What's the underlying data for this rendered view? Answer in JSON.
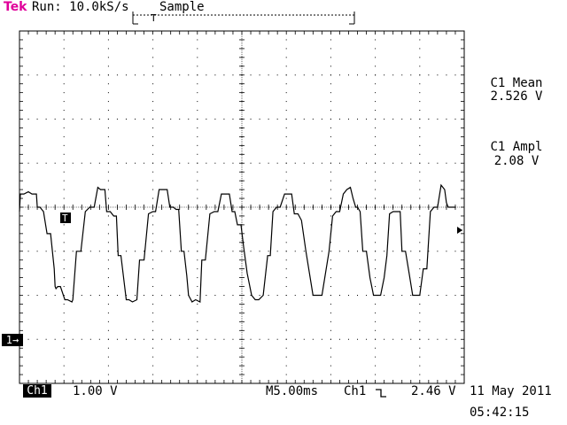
{
  "header": {
    "brand": "Tek",
    "run_status": "Run: 10.0kS/s",
    "acq_mode": "Sample"
  },
  "measurements": [
    {
      "label": "C1 Mean",
      "value": "2.526 V"
    },
    {
      "label": "C1 Ampl",
      "value": "2.08 V"
    }
  ],
  "channel_marker": "1→",
  "trigger_marker": "T",
  "footer": {
    "channel": "Ch1",
    "volts_per_div": "1.00 V",
    "timebase": "M5.00ms",
    "trigger_source": "Ch1",
    "trigger_slope_icon": "falling-edge-icon",
    "trigger_level": "2.46 V",
    "date": "11 May 2011",
    "time": "05:42:15"
  },
  "colors": {
    "brand": "#e0009a",
    "trace": "#000000",
    "grid": "#000000",
    "background": "#ffffff"
  },
  "chart_data": {
    "type": "line",
    "xlabel": "",
    "ylabel": "",
    "x_units": "ms",
    "y_units": "V",
    "xlim": [
      0,
      50
    ],
    "ylim": [
      -1.4,
      6.6
    ],
    "grid": true,
    "series": [
      {
        "x": [
          0,
          0.1,
          0.5,
          1.0,
          1.4,
          1.9,
          2.0,
          2.3,
          2.7,
          3.1,
          3.5,
          3.9,
          4.0,
          4.1,
          4.3,
          4.6,
          5.1,
          5.4,
          5.9,
          6.0,
          6.4,
          6.9,
          7.4,
          7.9,
          8.4,
          8.8,
          9.1,
          9.6,
          9.8,
          10.2,
          10.6,
          10.9,
          11.1,
          11.4,
          11.7,
          12.0,
          12.3,
          12.7,
          13.2,
          13.5,
          14.0,
          14.5,
          15.0,
          15.3,
          15.7,
          16.1,
          16.6,
          16.9,
          17.3,
          17.6,
          17.9,
          18.2,
          18.5,
          18.8,
          19.0,
          19.4,
          19.8,
          20.3,
          20.5,
          20.9,
          21.4,
          21.9,
          22.3,
          22.7,
          22.8,
          23.2,
          23.6,
          23.9,
          24.2,
          24.5,
          24.9,
          25.2,
          25.6,
          26.1,
          26.5,
          26.9,
          27.4,
          27.9,
          28.2,
          28.5,
          28.9,
          29.3,
          29.8,
          30.0,
          30.3,
          30.6,
          30.9,
          31.3,
          31.7,
          32.2,
          32.6,
          33.0,
          33.5,
          34.0,
          34.4,
          34.8,
          35.2,
          35.6,
          36.0,
          36.4,
          36.8,
          37.2,
          37.5,
          37.8,
          38.0,
          38.3,
          38.6,
          39.0,
          39.4,
          39.8,
          40.2,
          40.6,
          41.0,
          41.3,
          41.6,
          42.0,
          42.4,
          42.8,
          43.0,
          43.4,
          43.8,
          44.2,
          44.6,
          45.0,
          45.4,
          45.8,
          46.2,
          46.6,
          47.0,
          47.4,
          47.8,
          48.0,
          48.2,
          48.6,
          49.0
        ],
        "y": [
          2.5,
          2.9,
          2.9,
          2.95,
          2.9,
          2.9,
          2.6,
          2.6,
          2.5,
          2.0,
          2.0,
          1.2,
          0.8,
          0.75,
          0.8,
          0.8,
          0.5,
          0.5,
          0.45,
          0.5,
          1.6,
          1.6,
          2.5,
          2.6,
          2.6,
          3.05,
          3.0,
          3.0,
          2.5,
          2.5,
          2.4,
          2.4,
          1.5,
          1.5,
          1.0,
          0.5,
          0.5,
          0.45,
          0.5,
          1.4,
          1.4,
          2.45,
          2.5,
          2.5,
          3.0,
          3.0,
          3.0,
          2.6,
          2.6,
          2.55,
          2.55,
          1.6,
          1.6,
          1.05,
          0.6,
          0.45,
          0.5,
          0.45,
          1.4,
          1.4,
          2.45,
          2.5,
          2.5,
          2.9,
          2.9,
          2.9,
          2.9,
          2.5,
          2.5,
          2.2,
          2.2,
          1.7,
          1.1,
          0.6,
          0.5,
          0.5,
          0.6,
          1.5,
          1.5,
          2.5,
          2.6,
          2.6,
          2.9,
          2.9,
          2.9,
          2.9,
          2.45,
          2.45,
          2.3,
          1.6,
          1.1,
          0.6,
          0.6,
          0.6,
          1.1,
          1.6,
          2.4,
          2.5,
          2.5,
          2.9,
          3.0,
          3.05,
          2.8,
          2.6,
          2.6,
          2.5,
          1.6,
          1.6,
          1.0,
          0.6,
          0.6,
          0.6,
          1.0,
          1.5,
          2.45,
          2.5,
          2.5,
          2.5,
          1.6,
          1.6,
          1.1,
          0.6,
          0.6,
          0.6,
          1.2,
          1.2,
          2.5,
          2.6,
          2.6,
          3.1,
          3.0,
          2.7,
          2.6,
          2.6,
          2.6
        ]
      }
    ]
  }
}
